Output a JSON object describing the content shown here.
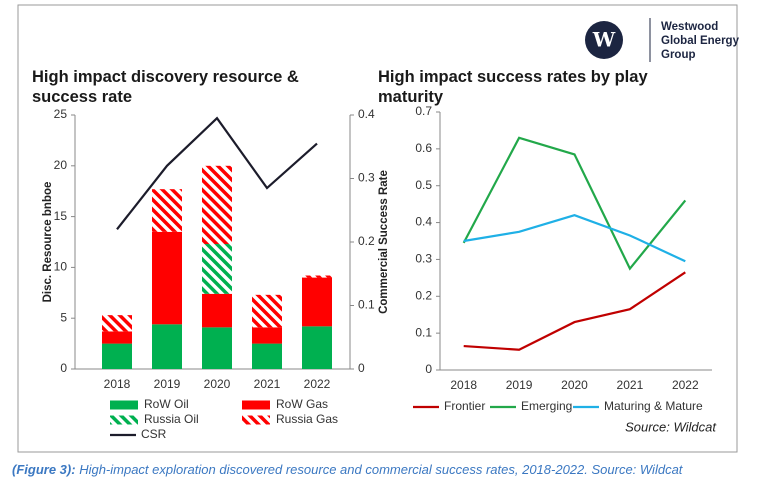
{
  "header": {
    "logo": "W",
    "company": [
      "Westwood",
      "Global Energy",
      "Group"
    ]
  },
  "chart_data": [
    {
      "type": "bar",
      "stacked": true,
      "title": "High impact discovery resource & success rate",
      "categories": [
        "2018",
        "2019",
        "2020",
        "2021",
        "2022"
      ],
      "ylabel": "Disc. Resource bnboe",
      "y2label": "Commercial Success Rate",
      "ylim": [
        0,
        25
      ],
      "yticks": [
        0,
        5,
        10,
        15,
        20,
        25
      ],
      "y2lim": [
        0,
        0.4
      ],
      "y2ticks": [
        0,
        0.1,
        0.2,
        0.3,
        0.4
      ],
      "series": [
        {
          "name": "RoW Oil",
          "color": "#00b050",
          "values": [
            2.5,
            4.4,
            4.1,
            2.5,
            4.2
          ]
        },
        {
          "name": "RoW Gas",
          "color": "#ff0000",
          "values": [
            1.2,
            9.1,
            3.3,
            1.6,
            4.8
          ]
        },
        {
          "name": "Russia Oil",
          "color": "#00b050",
          "hatch": true,
          "values": [
            0,
            0,
            4.9,
            0,
            0
          ]
        },
        {
          "name": "Russia Gas",
          "color": "#ff0000",
          "hatch": true,
          "values": [
            1.6,
            4.2,
            7.7,
            3.2,
            0.2
          ]
        },
        {
          "name": "CSR",
          "color": "#1c1c2b",
          "type": "line",
          "axis": "y2",
          "values": [
            0.22,
            0.32,
            0.395,
            0.285,
            0.355
          ]
        }
      ]
    },
    {
      "type": "line",
      "title": "High impact success rates by play maturity",
      "categories": [
        "2018",
        "2019",
        "2020",
        "2021",
        "2022"
      ],
      "ylim": [
        0,
        0.7
      ],
      "yticks": [
        0,
        0.1,
        0.2,
        0.3,
        0.4,
        0.5,
        0.6,
        0.7
      ],
      "annotation": "Source: Wildcat",
      "series": [
        {
          "name": "Frontier",
          "color": "#c00000",
          "values": [
            0.065,
            0.055,
            0.13,
            0.165,
            0.265
          ]
        },
        {
          "name": "Emerging",
          "color": "#22a84a",
          "values": [
            0.345,
            0.63,
            0.585,
            0.275,
            0.46
          ]
        },
        {
          "name": "Maturing & Mature",
          "color": "#1fb0e6",
          "values": [
            0.35,
            0.375,
            0.42,
            0.365,
            0.295
          ]
        }
      ]
    }
  ],
  "caption": {
    "label": "(Figure 3):",
    "text": "High-impact exploration discovered resource and commercial success rates, 2018-2022. Source: Wildcat"
  }
}
